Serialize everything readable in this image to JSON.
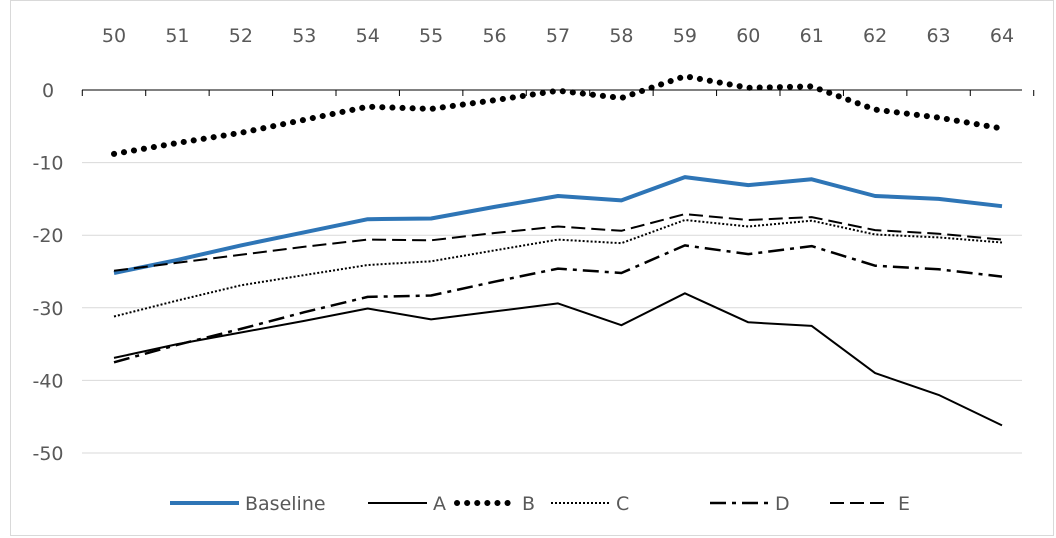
{
  "chart_data": {
    "type": "line",
    "title": "",
    "xlabel": "",
    "ylabel": "",
    "x": [
      50,
      51,
      52,
      53,
      54,
      55,
      56,
      57,
      58,
      59,
      60,
      61,
      62,
      63,
      64
    ],
    "xlim": [
      50,
      64
    ],
    "ylim": [
      -50,
      0
    ],
    "yticks": [
      0,
      -10,
      -20,
      -30,
      -40,
      -50
    ],
    "x_axis_position": "top",
    "grid": "horizontal",
    "legend_position": "bottom",
    "series": [
      {
        "name": "Baseline",
        "color": "#2e75b6",
        "style": "solid-thick",
        "values": [
          -25.2,
          -23.4,
          -21.4,
          -19.6,
          -17.8,
          -17.7,
          -16.1,
          -14.6,
          -15.2,
          -12.0,
          -13.1,
          -12.3,
          -14.6,
          -15.0,
          -16.0
        ]
      },
      {
        "name": "A",
        "color": "#000000",
        "style": "solid",
        "values": [
          -36.9,
          -35.0,
          -33.4,
          -31.8,
          -30.1,
          -31.6,
          -30.5,
          -29.4,
          -32.4,
          -28.0,
          -32.0,
          -32.5,
          -39.0,
          -42.0,
          -46.2
        ]
      },
      {
        "name": "B",
        "color": "#000000",
        "style": "round-dot",
        "values": [
          -8.8,
          -7.3,
          -5.9,
          -4.1,
          -2.3,
          -2.6,
          -1.4,
          -0.1,
          -1.1,
          1.9,
          0.3,
          0.5,
          -2.7,
          -3.8,
          -5.3
        ]
      },
      {
        "name": "C",
        "color": "#000000",
        "style": "dotted",
        "values": [
          -31.2,
          -29.0,
          -26.9,
          -25.5,
          -24.1,
          -23.6,
          -22.1,
          -20.6,
          -21.1,
          -17.9,
          -18.8,
          -18.0,
          -19.9,
          -20.3,
          -21.0
        ]
      },
      {
        "name": "D",
        "color": "#000000",
        "style": "dash-dot",
        "values": [
          -37.5,
          -35.1,
          -32.9,
          -30.6,
          -28.5,
          -28.3,
          -26.4,
          -24.6,
          -25.2,
          -21.4,
          -22.6,
          -21.5,
          -24.2,
          -24.7,
          -25.7
        ]
      },
      {
        "name": "E",
        "color": "#000000",
        "style": "dashed",
        "values": [
          -24.9,
          -23.8,
          -22.7,
          -21.6,
          -20.6,
          -20.7,
          -19.7,
          -18.8,
          -19.4,
          -17.1,
          -17.9,
          -17.5,
          -19.3,
          -19.8,
          -20.6
        ]
      }
    ]
  }
}
